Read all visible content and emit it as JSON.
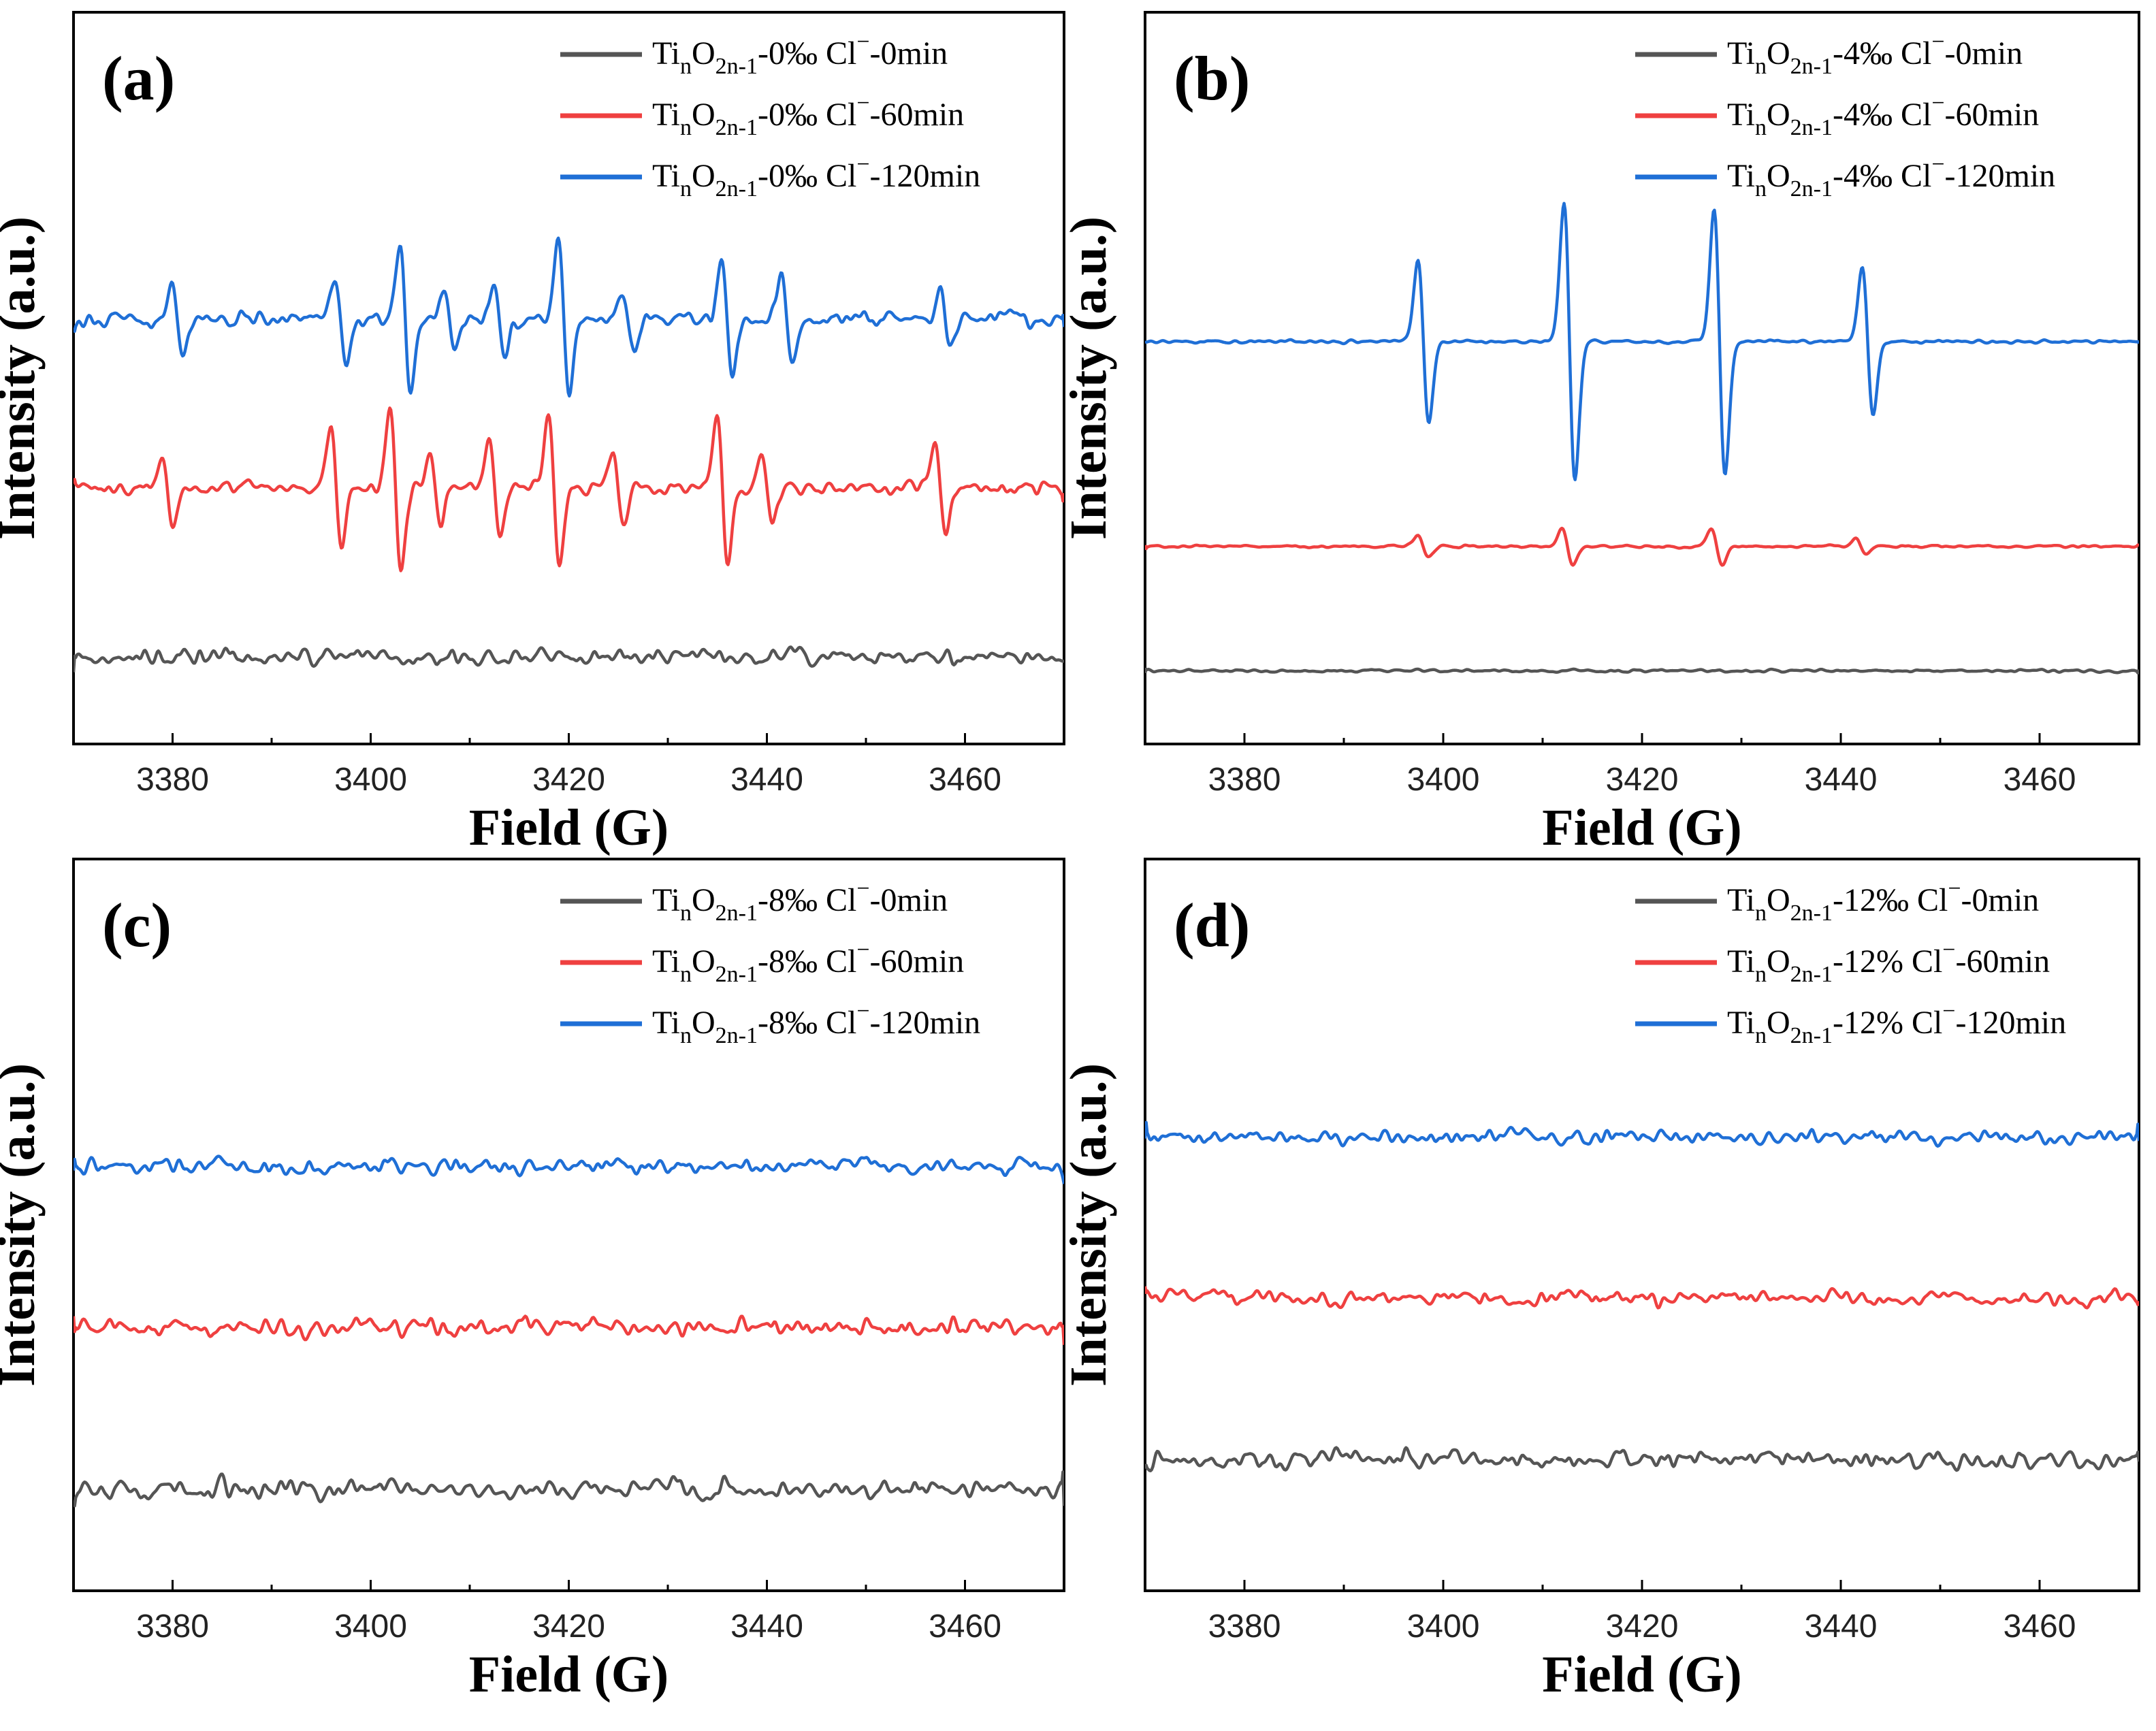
{
  "chart_data": [
    {
      "type": "line",
      "panel": "(a)",
      "xlabel": "Field (G)",
      "ylabel": "Intensity (a.u.)",
      "xlim": [
        3370,
        3470
      ],
      "xticks": [
        3380,
        3400,
        3420,
        3440,
        3460
      ],
      "legend_placement": "top-right",
      "legend": [
        {
          "main": "Ti",
          "sub1": "n",
          "mid": "O",
          "sub2": "2n-1",
          "suffix": "-0‰ Cl",
          "sup": "−",
          "tail": "-0min"
        },
        {
          "main": "Ti",
          "sub1": "n",
          "mid": "O",
          "sub2": "2n-1",
          "suffix": "-0‰ Cl",
          "sup": "−",
          "tail": "-60min"
        },
        {
          "main": "Ti",
          "sub1": "n",
          "mid": "O",
          "sub2": "2n-1",
          "suffix": "-0‰ Cl",
          "sup": "−",
          "tail": "-120min"
        }
      ],
      "series": [
        {
          "name": "TinO2n-1-0‰ Cl−-0min",
          "color": "#555555",
          "baseline": 0.12,
          "noise": 0.022,
          "peaks": []
        },
        {
          "name": "TinO2n-1-0‰ Cl−-60min",
          "color": "#ef4040",
          "baseline": 0.35,
          "noise": 0.018,
          "peaks": [
            [
              3379.5,
              0.05
            ],
            [
              3396.5,
              0.08
            ],
            [
              3402.5,
              0.11
            ],
            [
              3406.5,
              0.05
            ],
            [
              3412.5,
              0.07
            ],
            [
              3418.5,
              0.1
            ],
            [
              3425,
              0.05
            ],
            [
              3435.5,
              0.1
            ],
            [
              3440,
              0.05
            ],
            [
              3457.5,
              0.06
            ]
          ]
        },
        {
          "name": "TinO2n-1-0‰ Cl−-120min",
          "color": "#1f6fd6",
          "baseline": 0.58,
          "noise": 0.016,
          "peaks": [
            [
              3380.5,
              0.05
            ],
            [
              3397,
              0.06
            ],
            [
              3403.5,
              0.1
            ],
            [
              3408,
              0.04
            ],
            [
              3413,
              0.05
            ],
            [
              3419.5,
              0.11
            ],
            [
              3426,
              0.04
            ],
            [
              3436,
              0.08
            ],
            [
              3442,
              0.06
            ],
            [
              3458,
              0.04
            ]
          ]
        }
      ]
    },
    {
      "type": "line",
      "panel": "(b)",
      "xlabel": "Field (G)",
      "ylabel": "Intensity (a.u.)",
      "xlim": [
        3370,
        3470
      ],
      "xticks": [
        3380,
        3400,
        3420,
        3440,
        3460
      ],
      "legend_placement": "top-right",
      "legend": [
        {
          "main": "Ti",
          "sub1": "n",
          "mid": "O",
          "sub2": "2n-1",
          "suffix": "-4‰ Cl",
          "sup": "−",
          "tail": "-0min"
        },
        {
          "main": "Ti",
          "sub1": "n",
          "mid": "O",
          "sub2": "2n-1",
          "suffix": "-4‰ Cl",
          "sup": "−",
          "tail": "-60min"
        },
        {
          "main": "Ti",
          "sub1": "n",
          "mid": "O",
          "sub2": "2n-1",
          "suffix": "-4‰ Cl",
          "sup": "−",
          "tail": "-120min"
        }
      ],
      "series": [
        {
          "name": "TinO2n-1-4‰ Cl−-0min",
          "color": "#555555",
          "baseline": 0.1,
          "noise": 0.003,
          "peaks": []
        },
        {
          "name": "TinO2n-1-4‰ Cl−-60min",
          "color": "#ef4040",
          "baseline": 0.27,
          "noise": 0.003,
          "peaks": [
            [
              3398,
              0.014
            ],
            [
              3412.5,
              0.025
            ],
            [
              3427.5,
              0.025
            ],
            [
              3442,
              0.012
            ]
          ]
        },
        {
          "name": "TinO2n-1-4‰ Cl−-120min",
          "color": "#1f6fd6",
          "baseline": 0.55,
          "noise": 0.003,
          "peaks": [
            [
              3398,
              0.11
            ],
            [
              3412.7,
              0.19
            ],
            [
              3427.8,
              0.18
            ],
            [
              3442.7,
              0.1
            ]
          ]
        }
      ]
    },
    {
      "type": "line",
      "panel": "(c)",
      "xlabel": "Field (G)",
      "ylabel": "Intensity (a.u.)",
      "xlim": [
        3370,
        3470
      ],
      "xticks": [
        3380,
        3400,
        3420,
        3440,
        3460
      ],
      "legend_placement": "top-right",
      "legend": [
        {
          "main": "Ti",
          "sub1": "n",
          "mid": "O",
          "sub2": "2n-1",
          "suffix": "-8‰ Cl",
          "sup": "−",
          "tail": "-0min"
        },
        {
          "main": "Ti",
          "sub1": "n",
          "mid": "O",
          "sub2": "2n-1",
          "suffix": "-8‰ Cl",
          "sup": "−",
          "tail": "-60min"
        },
        {
          "main": "Ti",
          "sub1": "n",
          "mid": "O",
          "sub2": "2n-1",
          "suffix": "-8‰ Cl",
          "sup": "−",
          "tail": "-120min"
        }
      ],
      "series": [
        {
          "name": "TinO2n-1-8‰ Cl−-0min",
          "color": "#555555",
          "baseline": 0.14,
          "noise": 0.024,
          "peaks": []
        },
        {
          "name": "TinO2n-1-8‰ Cl−-60min",
          "color": "#ef4040",
          "baseline": 0.36,
          "noise": 0.024,
          "peaks": []
        },
        {
          "name": "TinO2n-1-8‰ Cl−-120min",
          "color": "#1f6fd6",
          "baseline": 0.58,
          "noise": 0.024,
          "peaks": []
        }
      ]
    },
    {
      "type": "line",
      "panel": "(d)",
      "xlabel": "Field (G)",
      "ylabel": "Intensity (a.u.)",
      "xlim": [
        3370,
        3470
      ],
      "xticks": [
        3380,
        3400,
        3420,
        3440,
        3460
      ],
      "legend_placement": "top-right",
      "legend": [
        {
          "main": "Ti",
          "sub1": "n",
          "mid": "O",
          "sub2": "2n-1",
          "suffix": "-12‰ Cl",
          "sup": "−",
          "tail": "-0min"
        },
        {
          "main": "Ti",
          "sub1": "n",
          "mid": "O",
          "sub2": "2n-1",
          "suffix": "-12% Cl",
          "sup": "−",
          "tail": "-60min"
        },
        {
          "main": "Ti",
          "sub1": "n",
          "mid": "O",
          "sub2": "2n-1",
          "suffix": "-12% Cl",
          "sup": "−",
          "tail": "-120min"
        }
      ],
      "series": [
        {
          "name": "TinO2n-1-12‰ Cl−-0min",
          "color": "#555555",
          "baseline": 0.18,
          "noise": 0.016,
          "peaks": []
        },
        {
          "name": "TinO2n-1-12% Cl−-60min",
          "color": "#ef4040",
          "baseline": 0.4,
          "noise": 0.016,
          "peaks": []
        },
        {
          "name": "TinO2n-1-12% Cl−-120min",
          "color": "#1f6fd6",
          "baseline": 0.62,
          "noise": 0.02,
          "peaks": []
        }
      ]
    }
  ]
}
